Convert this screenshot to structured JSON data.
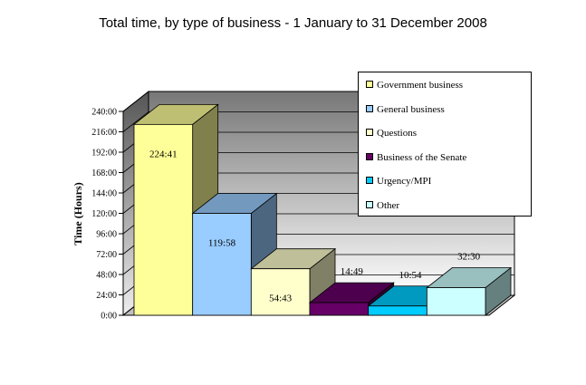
{
  "chart_data": {
    "type": "bar",
    "title": "Total time, by type of business - 1 January to 31 December 2008",
    "ylabel": "Time (Hours)",
    "xlabel": "",
    "ylim": [
      0,
      240
    ],
    "yticks": [
      "0:00",
      "24:00",
      "48:00",
      "72:00",
      "96:00",
      "120:00",
      "144:00",
      "168:00",
      "192:00",
      "216:00",
      "240:00"
    ],
    "grid": true,
    "legend_position": "top-right",
    "three_d": true,
    "categories": [
      "Government business",
      "General business",
      "Questions",
      "Business of the Senate",
      "Urgency/MPI",
      "Other"
    ],
    "labels": [
      "224:41",
      "119:58",
      "54:43",
      "14:49",
      "10:54",
      "32:30"
    ],
    "values": [
      224.683,
      119.967,
      54.717,
      14.817,
      10.9,
      32.5
    ],
    "colors": [
      "#ffff99",
      "#99ccff",
      "#ffffcc",
      "#660066",
      "#00ccff",
      "#ccffff"
    ]
  }
}
